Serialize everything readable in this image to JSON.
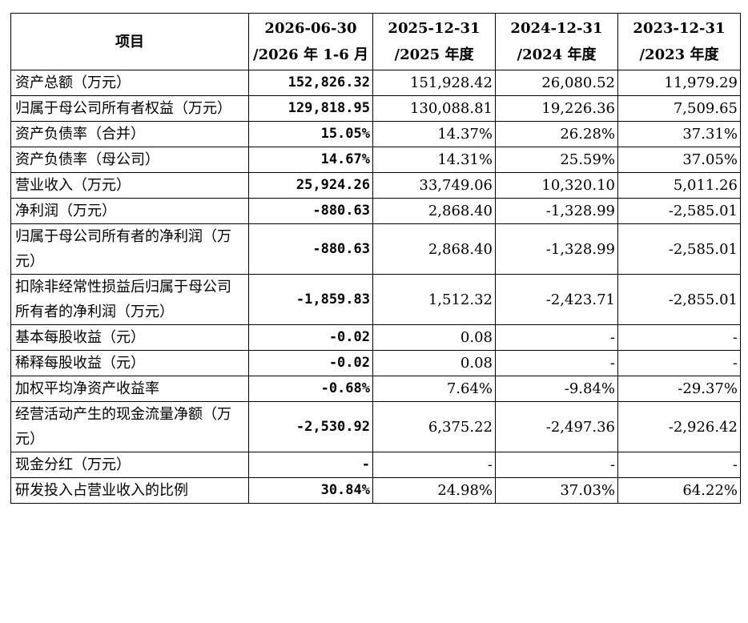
{
  "header": {
    "item": "项目",
    "col1": [
      "2026-06-30",
      "/2026 年 1-6 月"
    ],
    "col2": [
      "2025-12-31",
      "/2025 年度"
    ],
    "col3": [
      "2024-12-31",
      "/2024 年度"
    ],
    "col4": [
      "2023-12-31",
      "/2023 年度"
    ]
  },
  "rows": [
    {
      "label": "资产总额（万元）",
      "v": [
        "152,826.32",
        "151,928.42",
        "26,080.52",
        "11,979.29"
      ]
    },
    {
      "label": "归属于母公司所有者权益（万元）",
      "v": [
        "129,818.95",
        "130,088.81",
        "19,226.36",
        "7,509.65"
      ]
    },
    {
      "label": "资产负债率（合并）",
      "v": [
        "15.05%",
        "14.37%",
        "26.28%",
        "37.31%"
      ]
    },
    {
      "label": "资产负债率（母公司）",
      "v": [
        "14.67%",
        "14.31%",
        "25.59%",
        "37.05%"
      ]
    },
    {
      "label": "营业收入（万元）",
      "v": [
        "25,924.26",
        "33,749.06",
        "10,320.10",
        "5,011.26"
      ]
    },
    {
      "label": "净利润（万元）",
      "v": [
        "-880.63",
        "2,868.40",
        "-1,328.99",
        "-2,585.01"
      ]
    },
    {
      "label": "归属于母公司所有者的净利润（万元）",
      "v": [
        "-880.63",
        "2,868.40",
        "-1,328.99",
        "-2,585.01"
      ]
    },
    {
      "label": "扣除非经常性损益后归属于母公司所有者的净利润（万元）",
      "v": [
        "-1,859.83",
        "1,512.32",
        "-2,423.71",
        "-2,855.01"
      ]
    },
    {
      "label": "基本每股收益（元）",
      "v": [
        "-0.02",
        "0.08",
        "-",
        "-"
      ]
    },
    {
      "label": "稀释每股收益（元）",
      "v": [
        "-0.02",
        "0.08",
        "-",
        "-"
      ]
    },
    {
      "label": "加权平均净资产收益率",
      "v": [
        "-0.68%",
        "7.64%",
        "-9.84%",
        "-29.37%"
      ]
    },
    {
      "label": "经营活动产生的现金流量净额（万元）",
      "v": [
        "-2,530.92",
        "6,375.22",
        "-2,497.36",
        "-2,926.42"
      ]
    },
    {
      "label": "现金分红（万元）",
      "v": [
        "-",
        "-",
        "-",
        "-"
      ]
    },
    {
      "label": "研发投入占营业收入的比例",
      "v": [
        "30.84%",
        "24.98%",
        "37.03%",
        "64.22%"
      ]
    }
  ]
}
